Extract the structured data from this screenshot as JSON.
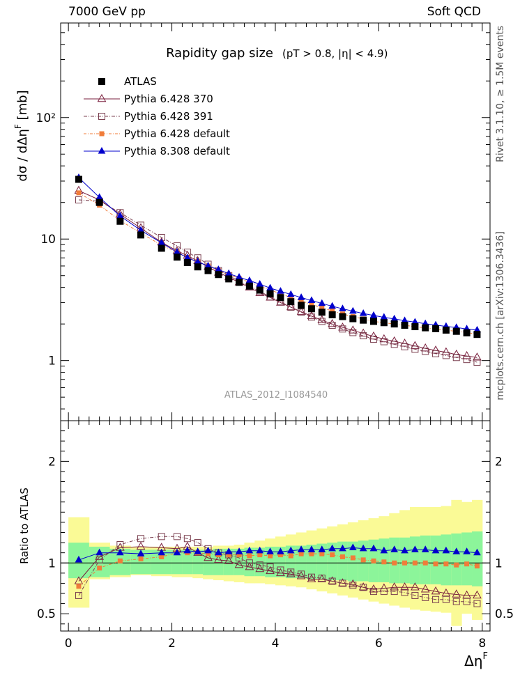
{
  "header": {
    "left": "7000 GeV pp",
    "right": "Soft QCD"
  },
  "side_labels": {
    "rivet": "Rivet 3.1.10, ≥ 1.5M events",
    "mcplots": "mcplots.cern.ch [arXiv:1306.3436]"
  },
  "colors": {
    "atlas": "#000000",
    "p370": "#7a1f3d",
    "p391": "#7a3f4f",
    "pdef": "#f07c3a",
    "p8": "#0000cc",
    "band_inner": "#8cf59a",
    "band_outer": "#fafa96"
  },
  "chart_data": [
    {
      "type": "scatter",
      "title": "Rapidity gap size",
      "subtitle": "(pT > 0.8, |η| < 4.9)",
      "analysis_tag": "ATLAS_2012_I1084540",
      "ylabel": "dσ / dΔη^F [mb]",
      "yscale": "log",
      "ylim": [
        0.32,
        600
      ],
      "xlim": [
        -0.15,
        8.15
      ],
      "y_tick_labels": [
        "1",
        "10",
        "10²"
      ],
      "legend_position": "top-left",
      "x": [
        0.2,
        0.6,
        1.0,
        1.4,
        1.8,
        2.1,
        2.3,
        2.5,
        2.7,
        2.9,
        3.1,
        3.3,
        3.5,
        3.7,
        3.9,
        4.1,
        4.3,
        4.5,
        4.7,
        4.9,
        5.1,
        5.3,
        5.5,
        5.7,
        5.9,
        6.1,
        6.3,
        6.5,
        6.7,
        6.9,
        7.1,
        7.3,
        7.5,
        7.7,
        7.9
      ],
      "series": [
        {
          "name": "ATLAS",
          "marker": "filled-square",
          "values": [
            31.0,
            20.0,
            14.0,
            10.8,
            8.4,
            7.1,
            6.4,
            5.9,
            5.5,
            5.1,
            4.7,
            4.4,
            4.1,
            3.8,
            3.55,
            3.3,
            3.05,
            2.85,
            2.67,
            2.5,
            2.38,
            2.3,
            2.21,
            2.15,
            2.1,
            2.05,
            2.0,
            1.95,
            1.9,
            1.86,
            1.83,
            1.78,
            1.74,
            1.69,
            1.64
          ]
        },
        {
          "name": "Pythia 6.428 370",
          "marker": "open-triangle",
          "values": [
            25.0,
            21.0,
            16.0,
            12.3,
            9.4,
            8.0,
            7.3,
            6.6,
            5.9,
            5.3,
            4.85,
            4.4,
            4.0,
            3.6,
            3.3,
            3.0,
            2.75,
            2.52,
            2.32,
            2.15,
            2.0,
            1.87,
            1.77,
            1.67,
            1.58,
            1.5,
            1.44,
            1.38,
            1.32,
            1.26,
            1.21,
            1.17,
            1.12,
            1.09,
            1.06
          ]
        },
        {
          "name": "Pythia 6.428 391",
          "marker": "open-square",
          "values": [
            21.0,
            20.5,
            16.5,
            13.0,
            10.3,
            8.8,
            7.8,
            7.0,
            6.2,
            5.5,
            5.0,
            4.5,
            4.1,
            3.7,
            3.35,
            3.05,
            2.75,
            2.5,
            2.28,
            2.1,
            1.95,
            1.82,
            1.7,
            1.6,
            1.5,
            1.43,
            1.36,
            1.3,
            1.24,
            1.19,
            1.14,
            1.1,
            1.06,
            1.02,
            0.97
          ]
        },
        {
          "name": "Pythia 6.428 default",
          "marker": "filled-square-small",
          "values": [
            24.0,
            19.0,
            14.2,
            11.2,
            8.9,
            7.8,
            7.0,
            6.5,
            6.0,
            5.5,
            5.1,
            4.75,
            4.4,
            4.1,
            3.8,
            3.55,
            3.3,
            3.1,
            2.9,
            2.72,
            2.56,
            2.42,
            2.3,
            2.2,
            2.1,
            2.05,
            2.0,
            1.95,
            1.9,
            1.86,
            1.82,
            1.78,
            1.74,
            1.7,
            1.65
          ]
        },
        {
          "name": "Pythia 8.308 default",
          "marker": "filled-triangle",
          "values": [
            32.0,
            22.0,
            15.5,
            11.8,
            9.3,
            7.8,
            7.0,
            6.5,
            6.0,
            5.6,
            5.2,
            4.85,
            4.55,
            4.25,
            3.95,
            3.72,
            3.5,
            3.3,
            3.12,
            2.95,
            2.8,
            2.67,
            2.55,
            2.44,
            2.35,
            2.27,
            2.2,
            2.13,
            2.07,
            2.01,
            1.96,
            1.91,
            1.87,
            1.82,
            1.78
          ]
        }
      ]
    },
    {
      "type": "scatter",
      "ylabel": "Ratio to ATLAS",
      "xlabel": "Δη^F",
      "ylim": [
        0.33,
        2.4
      ],
      "xlim": [
        -0.15,
        8.15
      ],
      "x_tick_labels": [
        "0",
        "2",
        "4",
        "6",
        "8"
      ],
      "y_tick_labels": [
        "0.5",
        "1",
        "2"
      ],
      "bin_edges": [
        0.0,
        0.4,
        0.8,
        1.2,
        1.6,
        2.0,
        2.2,
        2.4,
        2.6,
        2.8,
        3.0,
        3.2,
        3.4,
        3.6,
        3.8,
        4.0,
        4.2,
        4.4,
        4.6,
        4.8,
        5.0,
        5.2,
        5.4,
        5.6,
        5.8,
        6.0,
        6.2,
        6.4,
        6.6,
        6.8,
        7.0,
        7.2,
        7.4,
        7.6,
        7.8,
        8.0
      ],
      "bands": {
        "inner_lo": [
          0.85,
          0.86,
          0.88,
          0.89,
          0.89,
          0.89,
          0.89,
          0.89,
          0.88,
          0.88,
          0.88,
          0.88,
          0.87,
          0.87,
          0.86,
          0.86,
          0.85,
          0.85,
          0.84,
          0.84,
          0.83,
          0.83,
          0.82,
          0.82,
          0.81,
          0.81,
          0.8,
          0.8,
          0.79,
          0.79,
          0.79,
          0.78,
          0.78,
          0.78,
          0.77
        ],
        "inner_hi": [
          1.2,
          1.16,
          1.14,
          1.13,
          1.13,
          1.13,
          1.13,
          1.13,
          1.13,
          1.14,
          1.14,
          1.14,
          1.15,
          1.15,
          1.16,
          1.16,
          1.17,
          1.17,
          1.18,
          1.19,
          1.2,
          1.21,
          1.21,
          1.22,
          1.23,
          1.24,
          1.25,
          1.25,
          1.26,
          1.27,
          1.27,
          1.28,
          1.29,
          1.3,
          1.31
        ],
        "outer_lo": [
          0.56,
          0.84,
          0.86,
          0.88,
          0.87,
          0.86,
          0.86,
          0.85,
          0.84,
          0.83,
          0.82,
          0.81,
          0.8,
          0.8,
          0.79,
          0.78,
          0.77,
          0.76,
          0.74,
          0.72,
          0.7,
          0.68,
          0.66,
          0.64,
          0.62,
          0.6,
          0.58,
          0.56,
          0.54,
          0.53,
          0.52,
          0.51,
          0.38,
          0.5,
          0.44
        ],
        "outer_hi": [
          1.45,
          1.2,
          1.17,
          1.16,
          1.16,
          1.16,
          1.16,
          1.16,
          1.16,
          1.17,
          1.17,
          1.18,
          1.2,
          1.22,
          1.24,
          1.26,
          1.28,
          1.3,
          1.32,
          1.34,
          1.36,
          1.38,
          1.4,
          1.42,
          1.44,
          1.46,
          1.49,
          1.52,
          1.55,
          1.55,
          1.55,
          1.56,
          1.62,
          1.6,
          1.62
        ]
      },
      "x": [
        0.2,
        0.6,
        1.0,
        1.4,
        1.8,
        2.1,
        2.3,
        2.5,
        2.7,
        2.9,
        3.1,
        3.3,
        3.5,
        3.7,
        3.9,
        4.1,
        4.3,
        4.5,
        4.7,
        4.9,
        5.1,
        5.3,
        5.5,
        5.7,
        5.9,
        6.1,
        6.3,
        6.5,
        6.7,
        6.9,
        7.1,
        7.3,
        7.5,
        7.7,
        7.9
      ],
      "series": [
        {
          "name": "Pythia 6.428 370",
          "marker": "open-triangle",
          "values": [
            0.82,
            1.06,
            1.15,
            1.16,
            1.15,
            1.14,
            1.16,
            1.1,
            1.05,
            1.03,
            1.02,
            0.98,
            0.96,
            0.94,
            0.92,
            0.9,
            0.89,
            0.87,
            0.84,
            0.84,
            0.82,
            0.8,
            0.79,
            0.76,
            0.74,
            0.75,
            0.76,
            0.76,
            0.76,
            0.74,
            0.72,
            0.7,
            0.69,
            0.68,
            0.68
          ]
        },
        {
          "name": "Pythia 6.428 391",
          "marker": "open-square",
          "values": [
            0.68,
            1.03,
            1.18,
            1.24,
            1.26,
            1.26,
            1.24,
            1.2,
            1.14,
            1.1,
            1.08,
            1.05,
            1.0,
            0.98,
            0.96,
            0.93,
            0.91,
            0.89,
            0.86,
            0.85,
            0.82,
            0.8,
            0.78,
            0.76,
            0.72,
            0.72,
            0.72,
            0.71,
            0.68,
            0.66,
            0.64,
            0.64,
            0.62,
            0.62,
            0.6
          ]
        },
        {
          "name": "Pythia 6.428 default",
          "marker": "filled-square-small",
          "values": [
            0.77,
            0.95,
            1.02,
            1.04,
            1.06,
            1.1,
            1.1,
            1.1,
            1.09,
            1.08,
            1.08,
            1.08,
            1.07,
            1.08,
            1.07,
            1.08,
            1.07,
            1.09,
            1.09,
            1.09,
            1.08,
            1.06,
            1.05,
            1.03,
            1.02,
            1.01,
            1.0,
            1.0,
            1.0,
            1.0,
            0.99,
            0.99,
            0.98,
            0.99,
            0.97
          ]
        },
        {
          "name": "Pythia 8.308 default",
          "marker": "filled-triangle",
          "values": [
            1.03,
            1.1,
            1.1,
            1.09,
            1.1,
            1.1,
            1.12,
            1.11,
            1.12,
            1.1,
            1.11,
            1.11,
            1.12,
            1.12,
            1.11,
            1.11,
            1.12,
            1.13,
            1.13,
            1.13,
            1.14,
            1.14,
            1.15,
            1.14,
            1.14,
            1.12,
            1.13,
            1.12,
            1.13,
            1.13,
            1.12,
            1.12,
            1.11,
            1.11,
            1.1
          ]
        }
      ]
    }
  ]
}
